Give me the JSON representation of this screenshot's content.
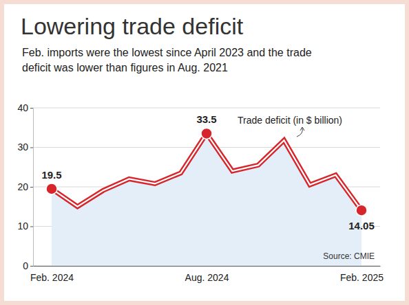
{
  "chart_data": {
    "type": "line",
    "title": "Lowering trade deficit",
    "subtitle": "Feb. imports were the lowest since April 2023 and the trade deficit was lower than figures in Aug. 2021",
    "categories": [
      "Feb. 2024",
      null,
      null,
      null,
      null,
      null,
      "Aug. 2024",
      null,
      null,
      null,
      null,
      null,
      "Feb. 2025"
    ],
    "values": [
      19.5,
      15.0,
      19.1,
      22.0,
      20.8,
      23.5,
      33.5,
      24.0,
      25.5,
      31.8,
      20.5,
      23.0,
      14.05
    ],
    "value_labels": [
      "19.5",
      null,
      null,
      null,
      null,
      null,
      "33.5",
      null,
      null,
      null,
      null,
      null,
      "14.05"
    ],
    "data_labels": true,
    "color": "#d7262b",
    "marker": "circle",
    "ylim": [
      0,
      40
    ],
    "yticks": [
      0,
      10,
      20,
      30,
      40
    ],
    "grid": true,
    "annotation": "Trade deficit (in $ billion)",
    "source": "Source: CMIE"
  }
}
